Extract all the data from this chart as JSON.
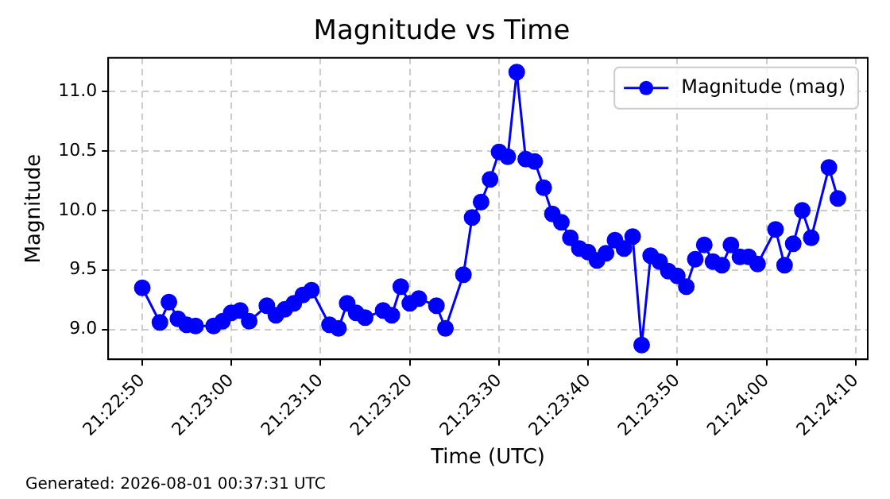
{
  "chart_data": {
    "type": "line",
    "title": "Magnitude vs Time",
    "xlabel": "Time (UTC)",
    "ylabel": "Magnitude",
    "x": [
      21.38056,
      21.38111,
      21.38139,
      21.38167,
      21.38194,
      21.38222,
      21.38278,
      21.38306,
      21.38333,
      21.38361,
      21.38389,
      21.38444,
      21.38472,
      21.385,
      21.38528,
      21.38556,
      21.38583,
      21.38639,
      21.38667,
      21.38694,
      21.38722,
      21.3875,
      21.38806,
      21.38833,
      21.38861,
      21.38889,
      21.38917,
      21.38972,
      21.39,
      21.39056,
      21.39083,
      21.39111,
      21.39139,
      21.39167,
      21.39194,
      21.39222,
      21.3925,
      21.39278,
      21.39306,
      21.39333,
      21.39361,
      21.39389,
      21.39417,
      21.39444,
      21.39472,
      21.395,
      21.39528,
      21.39556,
      21.39583,
      21.39611,
      21.39639,
      21.39667,
      21.39694,
      21.39722,
      21.3975,
      21.39778,
      21.39806,
      21.39833,
      21.39861,
      21.39889,
      21.39917,
      21.39944,
      21.39972,
      21.40028,
      21.40056,
      21.40083,
      21.40111,
      21.40139,
      21.40194,
      21.40222
    ],
    "series": [
      {
        "name": "Magnitude (mag)",
        "color": "#0000ff",
        "values": [
          9.35,
          9.06,
          9.23,
          9.09,
          9.04,
          9.03,
          9.03,
          9.07,
          9.14,
          9.16,
          9.07,
          9.2,
          9.12,
          9.17,
          9.22,
          9.29,
          9.33,
          9.04,
          9.01,
          9.22,
          9.14,
          9.1,
          9.16,
          9.12,
          9.36,
          9.22,
          9.26,
          9.2,
          9.01,
          9.46,
          9.94,
          10.07,
          10.26,
          10.49,
          10.45,
          11.16,
          10.43,
          10.41,
          10.19,
          9.97,
          9.9,
          9.77,
          9.68,
          9.65,
          9.58,
          9.64,
          9.75,
          9.68,
          9.78,
          8.87,
          9.62,
          9.57,
          9.49,
          9.45,
          9.36,
          9.59,
          9.71,
          9.57,
          9.54,
          9.71,
          9.61,
          9.61,
          9.55,
          9.84,
          9.54,
          9.72,
          10.0,
          9.77,
          10.36,
          10.1
        ]
      }
    ],
    "xlim": [
      21.3795,
      21.40315
    ],
    "xticks": [
      {
        "value": 21.38056,
        "label": "21:22:50"
      },
      {
        "value": 21.38333,
        "label": "21:23:00"
      },
      {
        "value": 21.38611,
        "label": "21:23:10"
      },
      {
        "value": 21.38889,
        "label": "21:23:20"
      },
      {
        "value": 21.39167,
        "label": "21:23:30"
      },
      {
        "value": 21.39444,
        "label": "21:23:40"
      },
      {
        "value": 21.39722,
        "label": "21:23:50"
      },
      {
        "value": 21.4,
        "label": "21:24:00"
      },
      {
        "value": 21.40278,
        "label": "21:24:10"
      }
    ],
    "ylim": [
      8.75,
      11.28
    ],
    "yticks": [
      {
        "value": 9,
        "label": "9.0"
      },
      9.5,
      {
        "value": 10,
        "label": "10.0"
      },
      10.5,
      {
        "value": 11,
        "label": "11.0"
      }
    ],
    "grid": true,
    "legend": "top right",
    "marker": "circle",
    "line_style": "solid",
    "annotations": [
      "Generated: 2026-08-01 00:37:31 UTC"
    ]
  }
}
